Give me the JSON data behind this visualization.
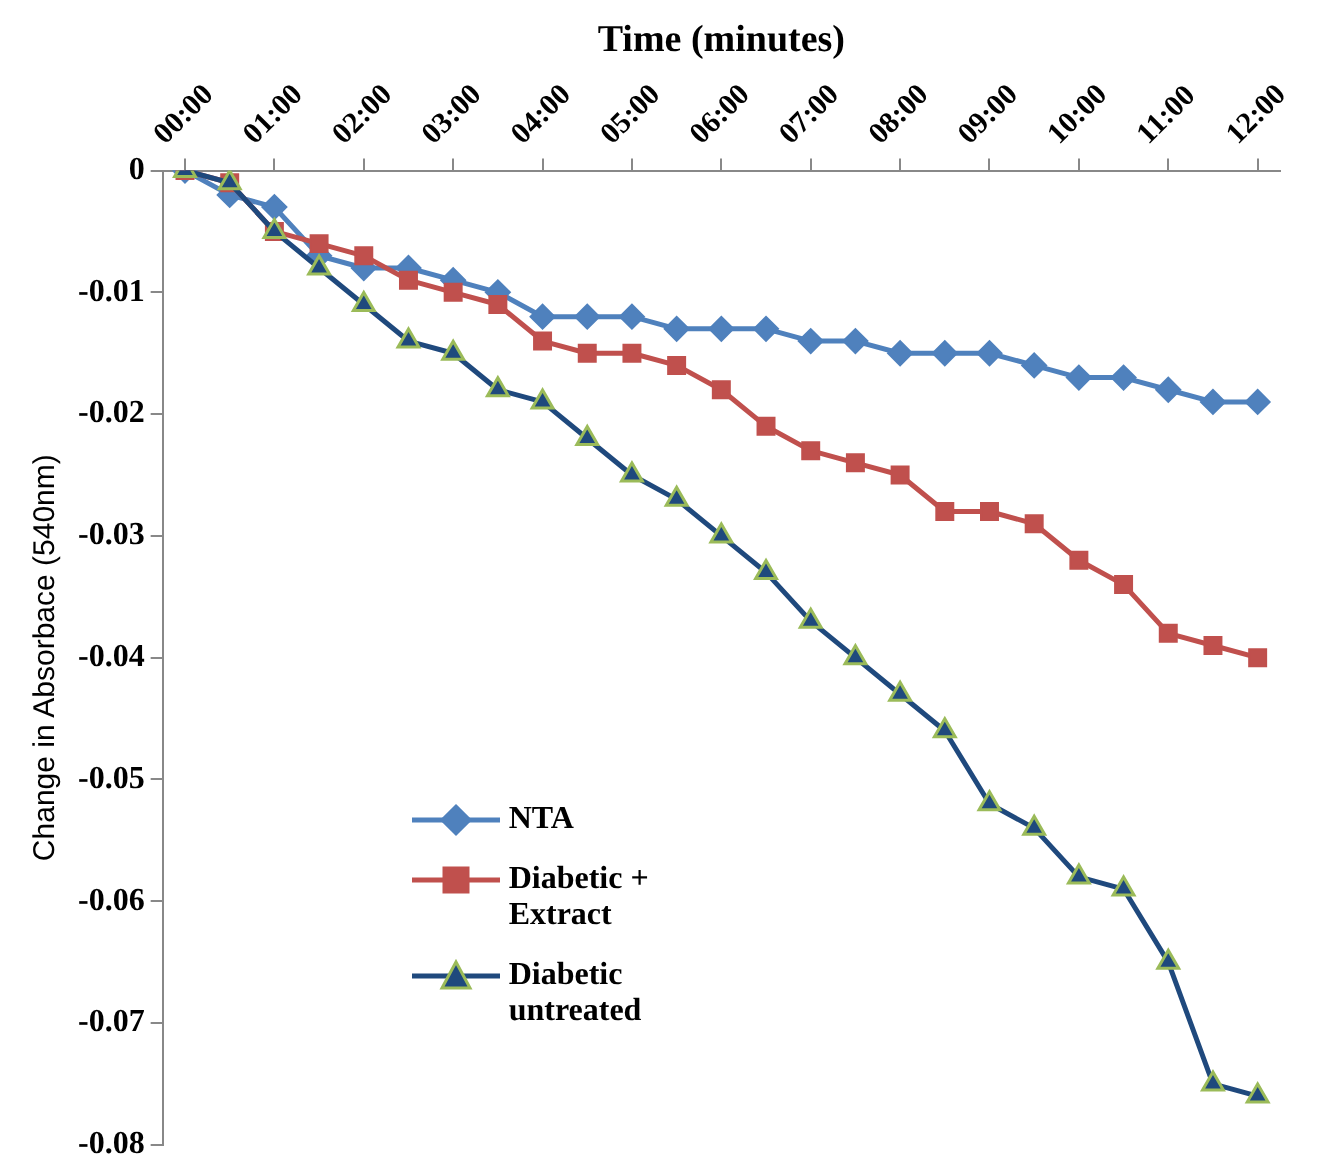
{
  "chart_data": {
    "type": "line",
    "xlabel": "Time (minutes)",
    "ylabel": "Change in Absorbace (540nm)",
    "x": [
      0,
      0.5,
      1,
      1.5,
      2,
      2.5,
      3,
      3.5,
      4,
      4.5,
      5,
      5.5,
      6,
      6.5,
      7,
      7.5,
      8,
      8.5,
      9,
      9.5,
      10,
      10.5,
      11,
      11.5,
      12
    ],
    "xlim": [
      -0.25,
      12.25
    ],
    "xticks": [
      {
        "value": 0,
        "label": "00:00"
      },
      {
        "value": 1,
        "label": "01:00"
      },
      {
        "value": 2,
        "label": "02:00"
      },
      {
        "value": 3,
        "label": "03:00"
      },
      {
        "value": 4,
        "label": "04:00"
      },
      {
        "value": 5,
        "label": "05:00"
      },
      {
        "value": 6,
        "label": "06:00"
      },
      {
        "value": 7,
        "label": "07:00"
      },
      {
        "value": 8,
        "label": "08:00"
      },
      {
        "value": 9,
        "label": "09:00"
      },
      {
        "value": 10,
        "label": "10:00"
      },
      {
        "value": 11,
        "label": "11:00"
      },
      {
        "value": 12,
        "label": "12:00"
      }
    ],
    "ylim": [
      -0.08,
      0
    ],
    "yticks": [
      -0.08,
      -0.07,
      -0.06,
      -0.05,
      -0.04,
      -0.03,
      -0.02,
      -0.01,
      0
    ],
    "series": [
      {
        "name": "NTA",
        "color": "#4f81bd",
        "marker": "diamond",
        "values": [
          0,
          -0.002,
          -0.003,
          -0.007,
          -0.008,
          -0.008,
          -0.009,
          -0.01,
          -0.012,
          -0.012,
          -0.012,
          -0.013,
          -0.013,
          -0.013,
          -0.014,
          -0.014,
          -0.015,
          -0.015,
          -0.015,
          -0.016,
          -0.017,
          -0.017,
          -0.018,
          -0.019,
          -0.019
        ]
      },
      {
        "name": "Diabetic + Extract",
        "color": "#c0504d",
        "marker": "square",
        "values": [
          0,
          -0.001,
          -0.005,
          -0.006,
          -0.007,
          -0.009,
          -0.01,
          -0.011,
          -0.014,
          -0.015,
          -0.015,
          -0.016,
          -0.018,
          -0.021,
          -0.023,
          -0.024,
          -0.025,
          -0.028,
          -0.028,
          -0.029,
          -0.032,
          -0.034,
          -0.038,
          -0.039,
          -0.04
        ]
      },
      {
        "name": "Diabetic untreated",
        "color": "#1f497d",
        "marker": "triangle",
        "values": [
          0,
          -0.001,
          -0.005,
          -0.008,
          -0.011,
          -0.014,
          -0.015,
          -0.018,
          -0.019,
          -0.022,
          -0.025,
          -0.027,
          -0.03,
          -0.033,
          -0.037,
          -0.04,
          -0.043,
          -0.046,
          -0.052,
          -0.054,
          -0.058,
          -0.059,
          -0.065,
          -0.075,
          -0.076
        ]
      }
    ],
    "grid": false,
    "legend": "bottom left",
    "line_style": "solid"
  }
}
